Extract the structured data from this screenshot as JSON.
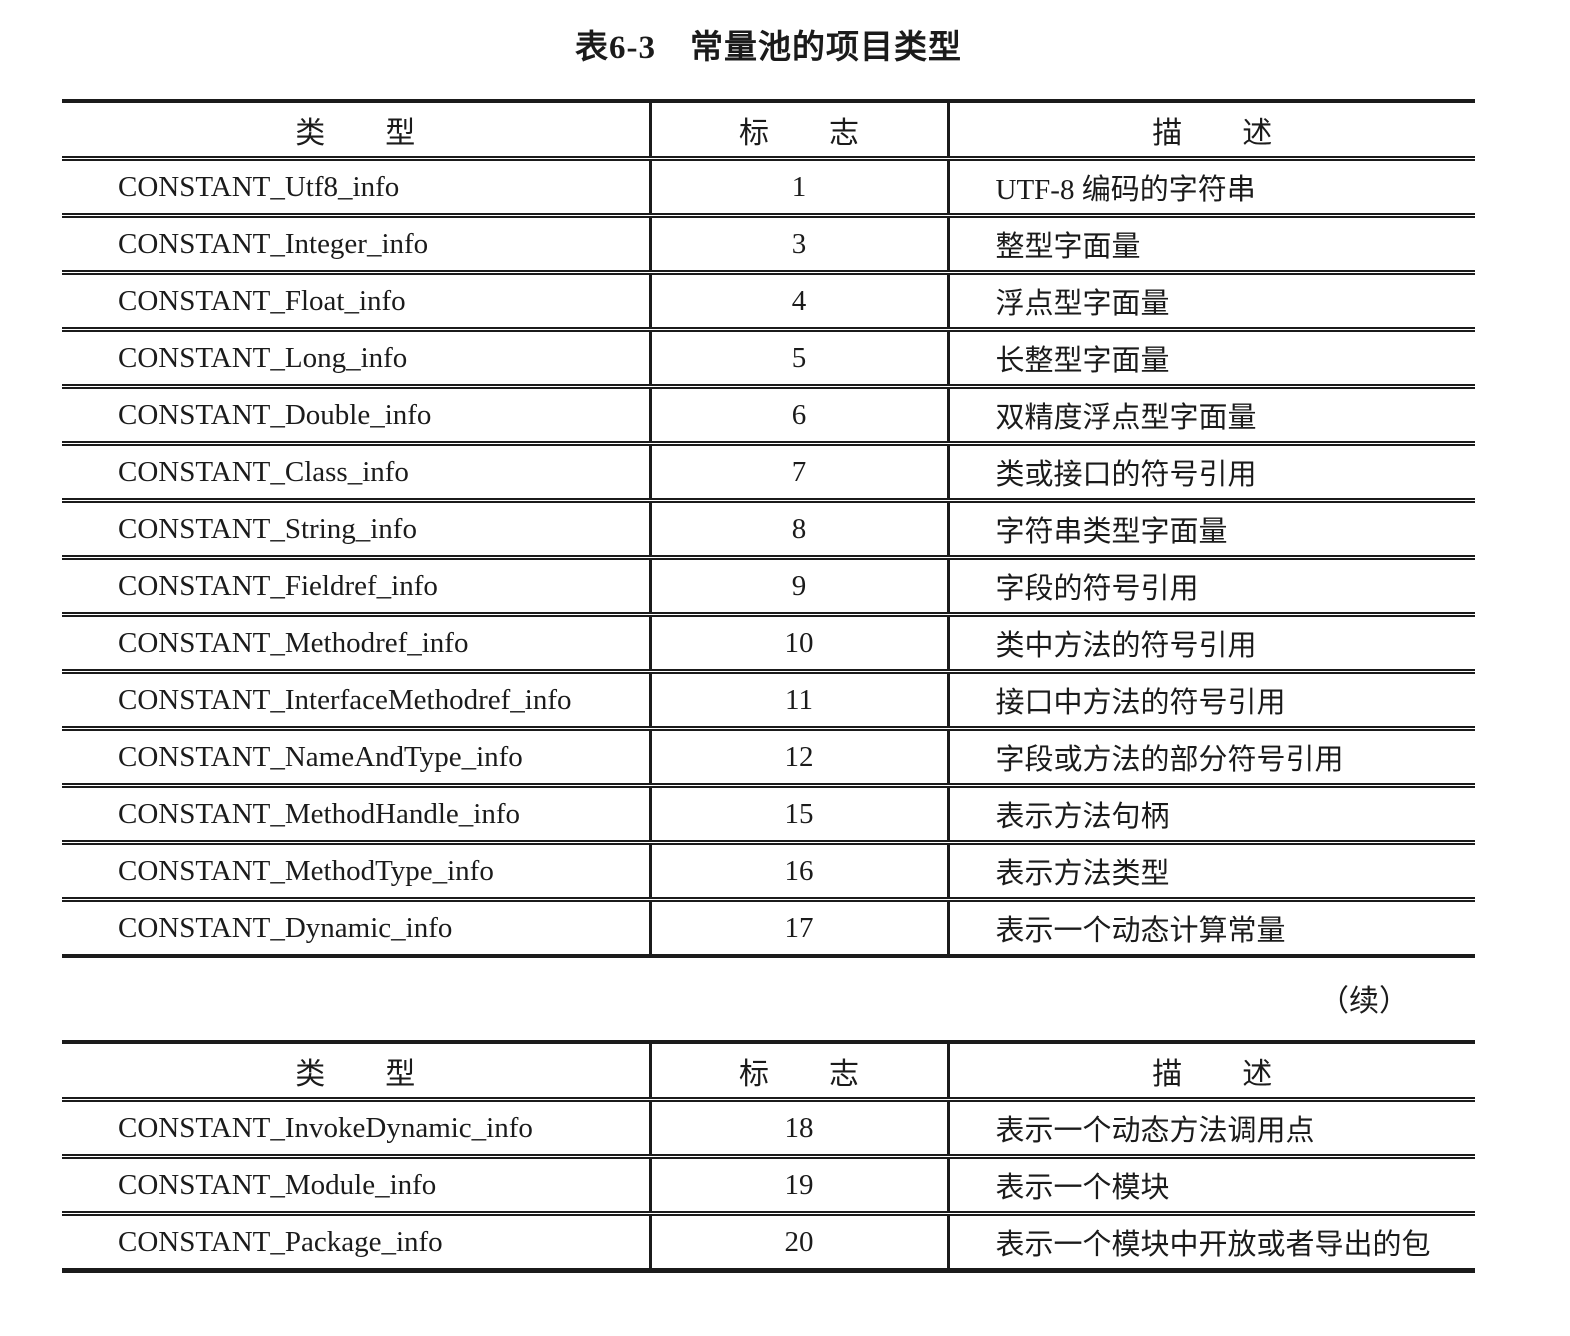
{
  "page": {
    "caption": "表6-3　常量池的项目类型",
    "continuation": "（续）"
  },
  "headers": {
    "type": "类　　型",
    "tag": "标　　志",
    "desc": "描　　述"
  },
  "tables": [
    {
      "rows": [
        {
          "type": "CONSTANT_Utf8_info",
          "tag": "1",
          "desc": "UTF-8 编码的字符串"
        },
        {
          "type": "CONSTANT_Integer_info",
          "tag": "3",
          "desc": "整型字面量"
        },
        {
          "type": "CONSTANT_Float_info",
          "tag": "4",
          "desc": "浮点型字面量"
        },
        {
          "type": "CONSTANT_Long_info",
          "tag": "5",
          "desc": "长整型字面量"
        },
        {
          "type": "CONSTANT_Double_info",
          "tag": "6",
          "desc": "双精度浮点型字面量"
        },
        {
          "type": "CONSTANT_Class_info",
          "tag": "7",
          "desc": "类或接口的符号引用"
        },
        {
          "type": "CONSTANT_String_info",
          "tag": "8",
          "desc": "字符串类型字面量"
        },
        {
          "type": "CONSTANT_Fieldref_info",
          "tag": "9",
          "desc": "字段的符号引用"
        },
        {
          "type": "CONSTANT_Methodref_info",
          "tag": "10",
          "desc": "类中方法的符号引用"
        },
        {
          "type": "CONSTANT_InterfaceMethodref_info",
          "tag": "11",
          "desc": "接口中方法的符号引用"
        },
        {
          "type": "CONSTANT_NameAndType_info",
          "tag": "12",
          "desc": "字段或方法的部分符号引用"
        },
        {
          "type": "CONSTANT_MethodHandle_info",
          "tag": "15",
          "desc": "表示方法句柄"
        },
        {
          "type": "CONSTANT_MethodType_info",
          "tag": "16",
          "desc": "表示方法类型"
        },
        {
          "type": "CONSTANT_Dynamic_info",
          "tag": "17",
          "desc": "表示一个动态计算常量"
        }
      ]
    },
    {
      "rows": [
        {
          "type": "CONSTANT_InvokeDynamic_info",
          "tag": "18",
          "desc": "表示一个动态方法调用点"
        },
        {
          "type": "CONSTANT_Module_info",
          "tag": "19",
          "desc": "表示一个模块"
        },
        {
          "type": "CONSTANT_Package_info",
          "tag": "20",
          "desc": "表示一个模块中开放或者导出的包"
        }
      ]
    }
  ]
}
